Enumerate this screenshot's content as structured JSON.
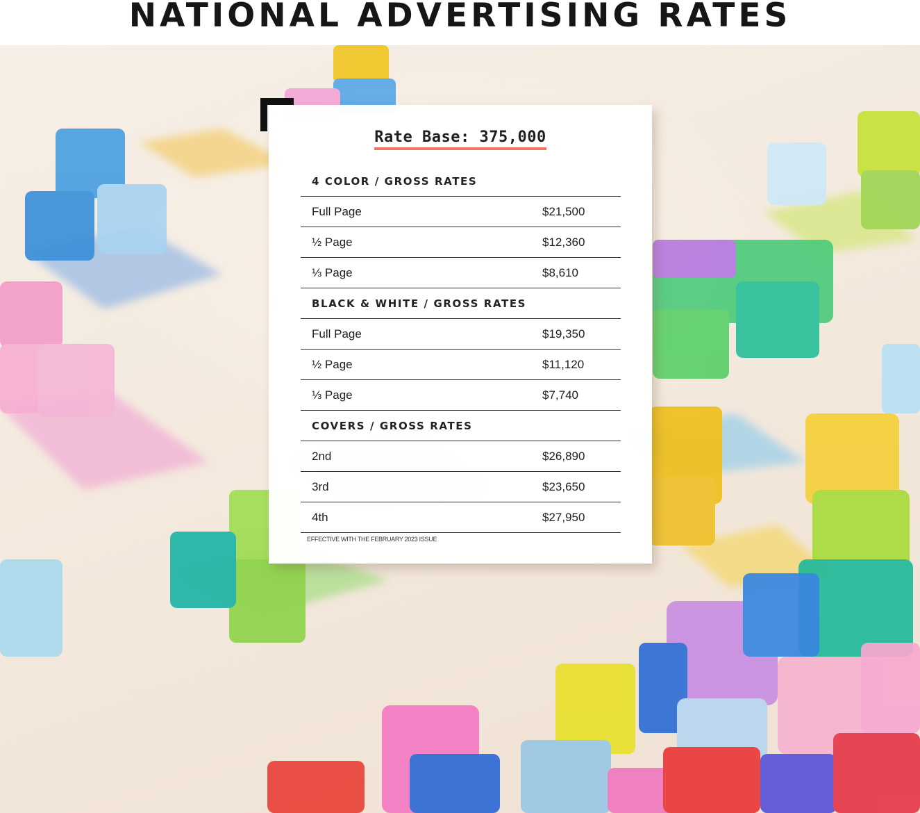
{
  "page_title": "NATIONAL ADVERTISING RATES",
  "rate_base": "Rate Base: 375,000",
  "sections": [
    {
      "heading": "4 COLOR / GROSS RATES",
      "items": [
        {
          "label": "Full Page",
          "price": "$21,500"
        },
        {
          "label": "½ Page",
          "price": "$12,360"
        },
        {
          "label": "⅓ Page",
          "price": "$8,610"
        }
      ]
    },
    {
      "heading": "BLACK & WHITE / GROSS RATES",
      "items": [
        {
          "label": "Full Page",
          "price": "$19,350"
        },
        {
          "label": "½ Page",
          "price": "$11,120"
        },
        {
          "label": "⅓ Page",
          "price": "$7,740"
        }
      ]
    },
    {
      "heading": "COVERS / GROSS RATES",
      "items": [
        {
          "label": "2nd",
          "price": "$26,890"
        },
        {
          "label": "3rd",
          "price": "$23,650"
        },
        {
          "label": "4th",
          "price": "$27,950"
        }
      ]
    }
  ],
  "footnote": "EFFECTIVE WITH THE FEBRUARY 2023 ISSUE",
  "colors": {
    "accent_underline": "#ef7561",
    "title_text": "#161616",
    "background": "#f4ebe0"
  }
}
